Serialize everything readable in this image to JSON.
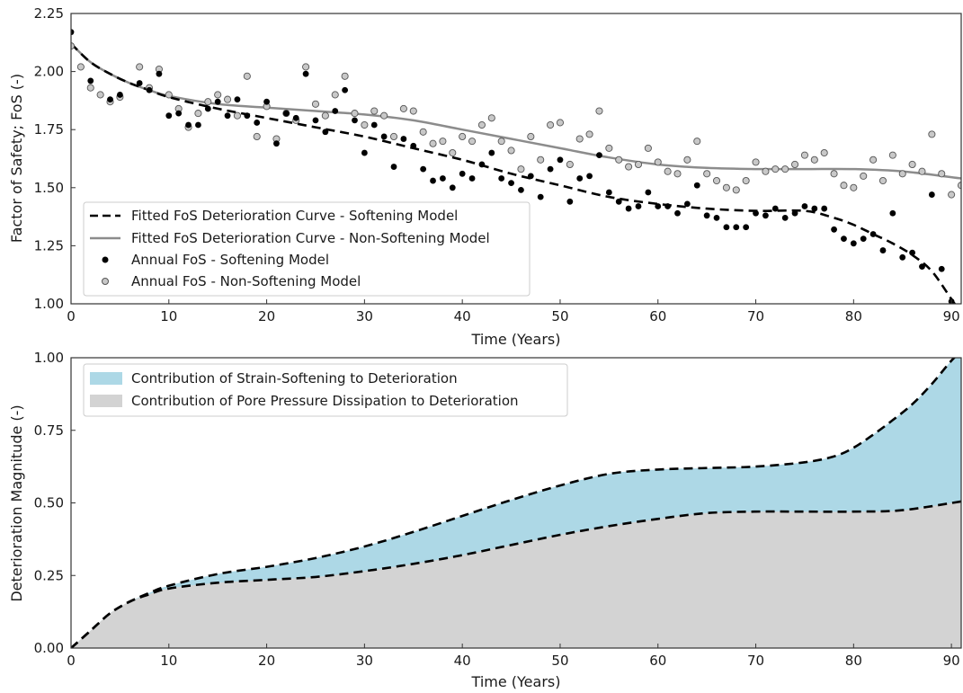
{
  "chart_data": [
    {
      "type": "line",
      "xlabel": "Time (Years)",
      "ylabel": "Factor of Safety; FoS (-)",
      "xlim": [
        0,
        91
      ],
      "ylim": [
        1.0,
        2.25
      ],
      "xticks": [
        "0",
        "10",
        "20",
        "30",
        "40",
        "50",
        "60",
        "70",
        "80",
        "90"
      ],
      "yticks": [
        "1.00",
        "1.25",
        "1.50",
        "1.75",
        "2.00",
        "2.25"
      ],
      "grid": false,
      "legend_position": "bottom-left",
      "series": [
        {
          "name": "Fitted FoS Deterioration Curve - Softening Model",
          "style": "dashed-line",
          "color": "#000000",
          "x": [
            0,
            2,
            4,
            6,
            8,
            10,
            15,
            20,
            25,
            30,
            35,
            40,
            45,
            50,
            55,
            60,
            65,
            70,
            75,
            78,
            80,
            82,
            84,
            86,
            88,
            90,
            91
          ],
          "y": [
            2.12,
            2.04,
            1.99,
            1.95,
            1.92,
            1.89,
            1.84,
            1.8,
            1.76,
            1.72,
            1.67,
            1.62,
            1.56,
            1.51,
            1.46,
            1.43,
            1.41,
            1.4,
            1.4,
            1.37,
            1.34,
            1.3,
            1.26,
            1.21,
            1.14,
            1.02,
            0.96
          ]
        },
        {
          "name": "Fitted FoS Deterioration Curve - Non-Softening Model",
          "style": "solid-line",
          "color": "#8c8c8c",
          "x": [
            0,
            2,
            4,
            6,
            8,
            10,
            15,
            20,
            25,
            30,
            35,
            40,
            45,
            50,
            55,
            60,
            65,
            70,
            75,
            80,
            85,
            91
          ],
          "y": [
            2.12,
            2.04,
            1.99,
            1.95,
            1.92,
            1.895,
            1.86,
            1.845,
            1.83,
            1.815,
            1.79,
            1.75,
            1.71,
            1.67,
            1.63,
            1.6,
            1.585,
            1.58,
            1.58,
            1.58,
            1.57,
            1.54
          ]
        },
        {
          "name": "Annual FoS - Softening Model",
          "style": "scatter",
          "color": "#000000",
          "x": [
            0,
            2,
            4,
            5,
            7,
            8,
            9,
            10,
            11,
            12,
            13,
            14,
            15,
            16,
            17,
            18,
            19,
            20,
            21,
            22,
            23,
            24,
            25,
            26,
            27,
            28,
            29,
            30,
            31,
            32,
            33,
            34,
            35,
            36,
            37,
            38,
            39,
            40,
            41,
            42,
            43,
            44,
            45,
            46,
            47,
            48,
            49,
            50,
            51,
            52,
            53,
            54,
            55,
            56,
            57,
            58,
            59,
            60,
            61,
            62,
            63,
            64,
            65,
            66,
            67,
            68,
            69,
            70,
            71,
            72,
            73,
            74,
            75,
            76,
            77,
            78,
            79,
            80,
            81,
            82,
            83,
            84,
            85,
            86,
            87,
            88,
            89,
            90
          ],
          "y": [
            2.17,
            1.96,
            1.88,
            1.9,
            1.95,
            1.92,
            1.99,
            1.81,
            1.82,
            1.77,
            1.77,
            1.84,
            1.87,
            1.81,
            1.88,
            1.81,
            1.78,
            1.87,
            1.69,
            1.82,
            1.8,
            1.99,
            1.79,
            1.74,
            1.83,
            1.92,
            1.79,
            1.65,
            1.77,
            1.72,
            1.59,
            1.71,
            1.68,
            1.58,
            1.53,
            1.54,
            1.5,
            1.56,
            1.54,
            1.6,
            1.65,
            1.54,
            1.52,
            1.49,
            1.55,
            1.46,
            1.58,
            1.62,
            1.44,
            1.54,
            1.55,
            1.64,
            1.48,
            1.44,
            1.41,
            1.42,
            1.48,
            1.42,
            1.42,
            1.39,
            1.43,
            1.51,
            1.38,
            1.37,
            1.33,
            1.33,
            1.33,
            1.39,
            1.38,
            1.41,
            1.37,
            1.39,
            1.42,
            1.41,
            1.41,
            1.32,
            1.28,
            1.26,
            1.28,
            1.3,
            1.23,
            1.39,
            1.2,
            1.22,
            1.16,
            1.47,
            1.15,
            1.01
          ]
        },
        {
          "name": "Annual FoS - Non-Softening Model",
          "style": "scatter-open",
          "color": "#c8c8c8",
          "x": [
            0,
            1,
            2,
            3,
            4,
            5,
            7,
            8,
            9,
            10,
            11,
            12,
            13,
            14,
            15,
            16,
            17,
            18,
            19,
            20,
            21,
            22,
            23,
            24,
            25,
            26,
            27,
            28,
            29,
            30,
            31,
            32,
            33,
            34,
            35,
            36,
            37,
            38,
            39,
            40,
            41,
            42,
            43,
            44,
            45,
            46,
            47,
            48,
            49,
            50,
            51,
            52,
            53,
            54,
            55,
            56,
            57,
            58,
            59,
            60,
            61,
            62,
            63,
            64,
            65,
            66,
            67,
            68,
            69,
            70,
            71,
            72,
            73,
            74,
            75,
            76,
            77,
            78,
            79,
            80,
            81,
            82,
            83,
            84,
            85,
            86,
            87,
            88,
            89,
            90,
            91
          ],
          "y": [
            2.11,
            2.02,
            1.93,
            1.9,
            1.87,
            1.89,
            2.02,
            1.93,
            2.01,
            1.9,
            1.84,
            1.76,
            1.82,
            1.87,
            1.9,
            1.88,
            1.81,
            1.98,
            1.72,
            1.85,
            1.71,
            1.82,
            1.79,
            2.02,
            1.86,
            1.81,
            1.9,
            1.98,
            1.82,
            1.77,
            1.83,
            1.81,
            1.72,
            1.84,
            1.83,
            1.74,
            1.69,
            1.7,
            1.65,
            1.72,
            1.7,
            1.77,
            1.8,
            1.7,
            1.66,
            1.58,
            1.72,
            1.62,
            1.77,
            1.78,
            1.6,
            1.71,
            1.73,
            1.83,
            1.67,
            1.62,
            1.59,
            1.6,
            1.67,
            1.61,
            1.57,
            1.56,
            1.62,
            1.7,
            1.56,
            1.53,
            1.5,
            1.49,
            1.53,
            1.61,
            1.57,
            1.58,
            1.58,
            1.6,
            1.64,
            1.62,
            1.65,
            1.56,
            1.51,
            1.5,
            1.55,
            1.62,
            1.53,
            1.64,
            1.56,
            1.6,
            1.57,
            1.73,
            1.56,
            1.47,
            1.51
          ]
        }
      ]
    },
    {
      "type": "area",
      "xlabel": "Time (Years)",
      "ylabel": "Deterioration Magnitude (-)",
      "xlim": [
        0,
        91
      ],
      "ylim": [
        0.0,
        1.0
      ],
      "xticks": [
        "0",
        "10",
        "20",
        "30",
        "40",
        "50",
        "60",
        "70",
        "80",
        "90"
      ],
      "yticks": [
        "0.00",
        "0.25",
        "0.50",
        "0.75",
        "1.00"
      ],
      "grid": false,
      "legend_position": "top-left",
      "series": [
        {
          "name": "Contribution of Strain-Softening to Deterioration",
          "color": "#add8e6",
          "x": [
            0,
            2,
            4,
            6,
            8,
            10,
            15,
            20,
            25,
            30,
            35,
            40,
            45,
            50,
            55,
            60,
            65,
            70,
            75,
            78,
            80,
            82,
            84,
            86,
            88,
            90,
            91
          ],
          "y": [
            0.0,
            0.06,
            0.12,
            0.16,
            0.19,
            0.215,
            0.255,
            0.28,
            0.31,
            0.35,
            0.4,
            0.455,
            0.51,
            0.56,
            0.6,
            0.615,
            0.62,
            0.625,
            0.64,
            0.66,
            0.69,
            0.735,
            0.785,
            0.84,
            0.91,
            0.99,
            1.02
          ]
        },
        {
          "name": "Contribution of Pore Pressure Dissipation to Deterioration",
          "color": "#d3d3d3",
          "x": [
            0,
            2,
            4,
            6,
            8,
            10,
            15,
            20,
            25,
            30,
            35,
            40,
            45,
            50,
            55,
            60,
            65,
            70,
            75,
            80,
            85,
            91
          ],
          "y": [
            0.0,
            0.06,
            0.12,
            0.16,
            0.185,
            0.205,
            0.225,
            0.235,
            0.245,
            0.265,
            0.29,
            0.32,
            0.355,
            0.39,
            0.42,
            0.445,
            0.465,
            0.47,
            0.47,
            0.47,
            0.475,
            0.505
          ]
        }
      ]
    }
  ]
}
